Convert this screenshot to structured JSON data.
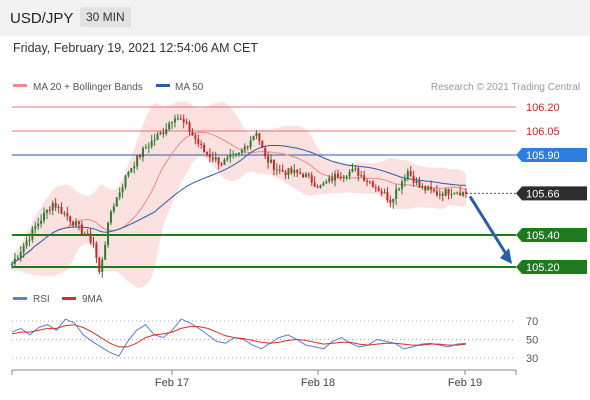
{
  "header": {
    "symbol": "USD/JPY",
    "timeframe": "30 MIN",
    "datetime": "Friday, February 19, 2021 12:54:06 AM CET"
  },
  "legend": {
    "ma20": "MA 20 + Bollinger Bands",
    "ma50": "MA 50",
    "copyright": "Research © 2021 Trading Central",
    "rsi": "RSI",
    "rsi_ma": "9MA"
  },
  "colors": {
    "up": "#2e7d32",
    "down": "#c62828",
    "resistance": "#e57373",
    "ma50": "#2f5aa8",
    "support": "#1f7a1f",
    "bollinger": "#fcdcdc",
    "rsi": "#5b7fd6",
    "rsi_ma": "#d32f2f"
  },
  "chart_data": [
    {
      "type": "candlestick",
      "xlabels": [
        "Feb 17",
        "Feb 18",
        "Feb 19"
      ],
      "ylim": [
        105.13,
        106.24
      ],
      "levels": [
        {
          "label": "106.20",
          "value": 106.2,
          "kind": "resistance"
        },
        {
          "label": "106.05",
          "value": 106.05,
          "kind": "resistance"
        },
        {
          "label": "105.90",
          "value": 105.9,
          "kind": "pivot"
        },
        {
          "label": "105.66",
          "value": 105.66,
          "kind": "current"
        },
        {
          "label": "105.40",
          "value": 105.4,
          "kind": "support"
        },
        {
          "label": "105.20",
          "value": 105.2,
          "kind": "support"
        }
      ],
      "key_points": [
        {
          "x": "start",
          "close": 105.22
        },
        {
          "x": "Feb 16 late",
          "close": 105.15
        },
        {
          "x": "Feb 17 high",
          "close": 106.2
        },
        {
          "x": "Feb 17 late",
          "close": 105.92
        },
        {
          "x": "Feb 18",
          "close": 105.75
        },
        {
          "x": "Feb 19",
          "close": 105.66
        }
      ],
      "forecast": {
        "from": 105.66,
        "to": 105.2
      }
    },
    {
      "type": "line",
      "title": "RSI",
      "yticks": [
        70,
        50,
        30
      ],
      "ylim": [
        20,
        80
      ],
      "series": [
        {
          "name": "RSI",
          "values": [
            58,
            62,
            55,
            63,
            66,
            60,
            72,
            68,
            55,
            48,
            42,
            36,
            32,
            48,
            60,
            66,
            55,
            52,
            60,
            72,
            68,
            62,
            55,
            48,
            46,
            52,
            50,
            44,
            40,
            46,
            52,
            55,
            50,
            44,
            42,
            40,
            48,
            52,
            46,
            42,
            44,
            50,
            48,
            46,
            40,
            42,
            45,
            46,
            44,
            42,
            45,
            46
          ]
        },
        {
          "name": "9MA",
          "values": [
            56,
            58,
            58,
            60,
            62,
            62,
            65,
            66,
            63,
            58,
            52,
            46,
            42,
            42,
            46,
            52,
            55,
            56,
            58,
            62,
            64,
            64,
            62,
            58,
            54,
            52,
            51,
            49,
            47,
            46,
            47,
            49,
            50,
            49,
            47,
            45,
            46,
            47,
            47,
            45,
            44,
            45,
            46,
            46,
            45,
            44,
            44,
            45,
            45,
            44,
            44,
            45
          ]
        }
      ]
    }
  ]
}
